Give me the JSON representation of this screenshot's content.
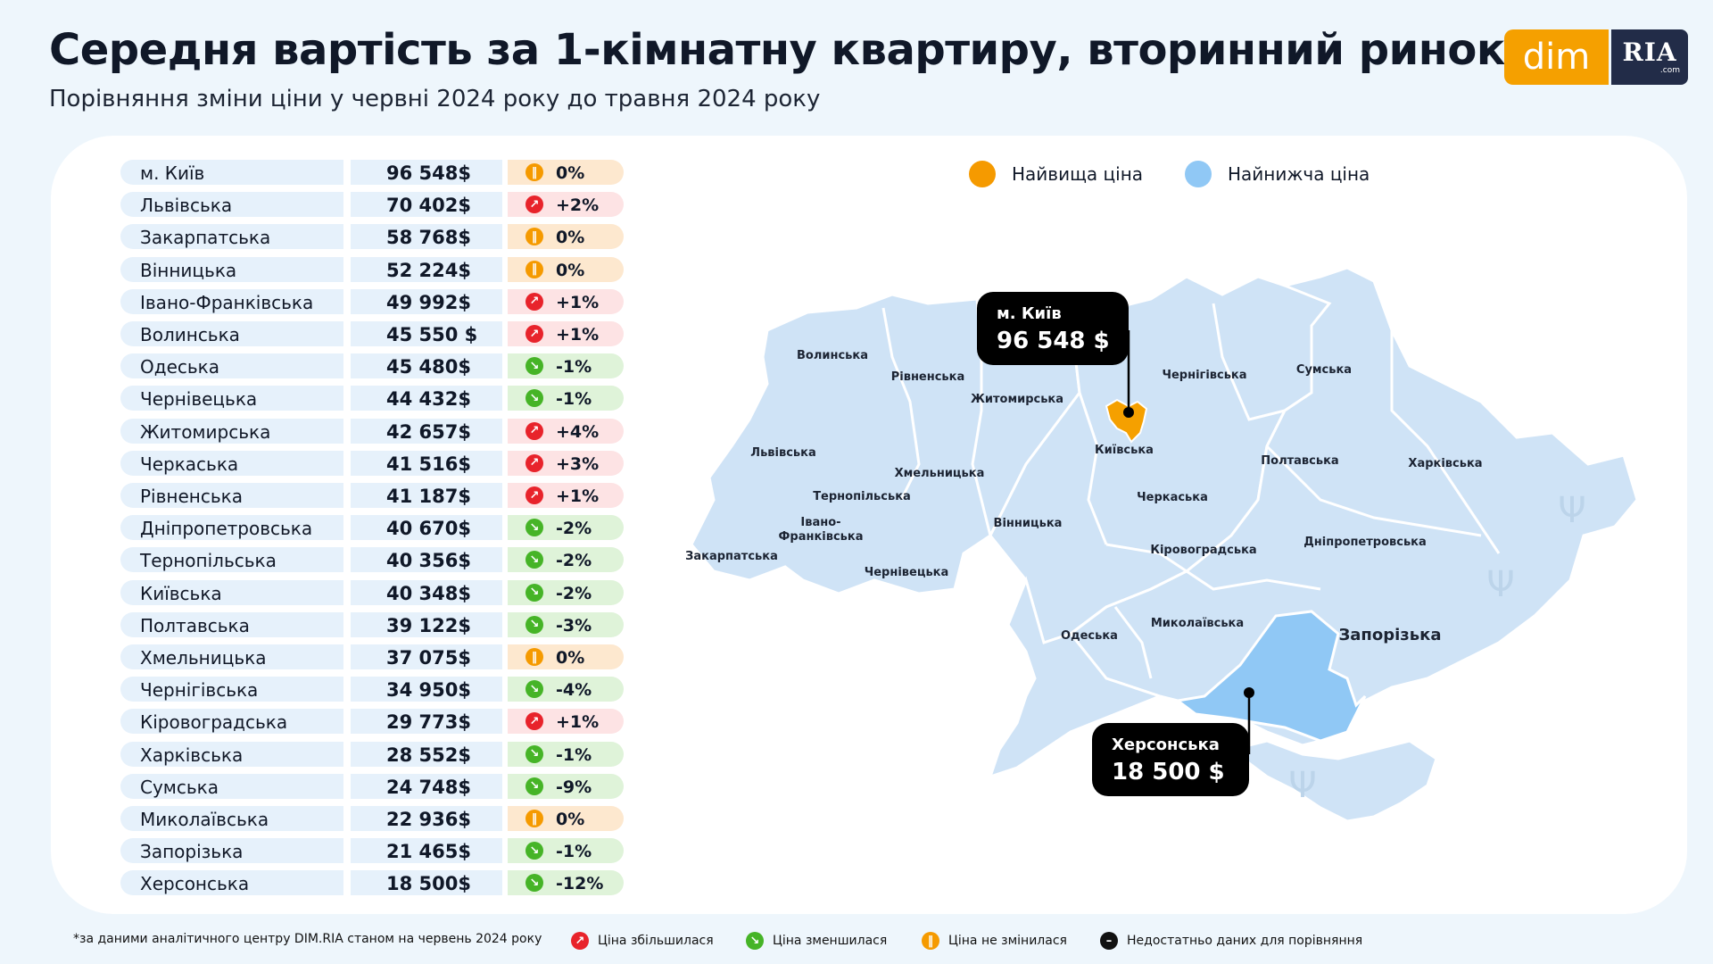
{
  "title": "Середня вартість за 1-кімнатну квартиру, вторинний ринок",
  "subtitle": "Порівняння зміни ціни у червні 2024 року до травня 2024 року",
  "logo": {
    "dim": "dim",
    "ria": "RIA",
    "com": ".com"
  },
  "colors": {
    "highest": "#f5a000",
    "lowest": "#90c8f5",
    "region": "#cfe3f6",
    "up": "#e8232b",
    "down": "#46b427",
    "flat": "#f59a00"
  },
  "legend": {
    "highest": "Найвища ціна",
    "lowest": "Найнижча ціна"
  },
  "chart_data": {
    "type": "table",
    "title": "Середня вартість за 1-кімнатну квартиру, вторинний ринок",
    "columns": [
      "region",
      "price",
      "change"
    ],
    "rows": [
      {
        "region": "м. Київ",
        "price": "96 548$",
        "change": "0%",
        "trend": "flat"
      },
      {
        "region": "Львівська",
        "price": "70 402$",
        "change": "+2%",
        "trend": "up"
      },
      {
        "region": "Закарпатська",
        "price": "58 768$",
        "change": "0%",
        "trend": "flat"
      },
      {
        "region": "Вінницька",
        "price": "52 224$",
        "change": "0%",
        "trend": "flat"
      },
      {
        "region": "Івано-Франківська",
        "price": "49 992$",
        "change": "+1%",
        "trend": "up"
      },
      {
        "region": "Волинська",
        "price": "45 550 $",
        "change": "+1%",
        "trend": "up"
      },
      {
        "region": "Одеська",
        "price": "45 480$",
        "change": "-1%",
        "trend": "down"
      },
      {
        "region": "Чернівецька",
        "price": "44 432$",
        "change": "-1%",
        "trend": "down"
      },
      {
        "region": "Житомирська",
        "price": "42 657$",
        "change": "+4%",
        "trend": "up"
      },
      {
        "region": "Черкаська",
        "price": "41 516$",
        "change": "+3%",
        "trend": "up"
      },
      {
        "region": "Рівненська",
        "price": "41 187$",
        "change": "+1%",
        "trend": "up"
      },
      {
        "region": "Дніпропетровська",
        "price": "40 670$",
        "change": "-2%",
        "trend": "down"
      },
      {
        "region": "Тернопільська",
        "price": "40 356$",
        "change": "-2%",
        "trend": "down"
      },
      {
        "region": "Київська",
        "price": "40 348$",
        "change": "-2%",
        "trend": "down"
      },
      {
        "region": "Полтавська",
        "price": "39 122$",
        "change": "-3%",
        "trend": "down"
      },
      {
        "region": "Хмельницька",
        "price": "37 075$",
        "change": "0%",
        "trend": "flat"
      },
      {
        "region": "Чернігівська",
        "price": "34 950$",
        "change": "-4%",
        "trend": "down"
      },
      {
        "region": "Кіровоградська",
        "price": "29 773$",
        "change": "+1%",
        "trend": "up"
      },
      {
        "region": "Харківська",
        "price": "28 552$",
        "change": "-1%",
        "trend": "down"
      },
      {
        "region": "Сумська",
        "price": "24 748$",
        "change": "-9%",
        "trend": "down"
      },
      {
        "region": "Миколаївська",
        "price": "22 936$",
        "change": "0%",
        "trend": "flat"
      },
      {
        "region": "Запорізька",
        "price": "21 465$",
        "change": "-1%",
        "trend": "down"
      },
      {
        "region": "Херсонська",
        "price": "18 500$",
        "change": "-12%",
        "trend": "down"
      }
    ]
  },
  "map": {
    "labels": [
      "Волинська",
      "Рівненська",
      "Житомирська",
      "Чернігівська",
      "Сумська",
      "Львівська",
      "Київська",
      "Полтавська",
      "Харківська",
      "Хмельницька",
      "Тернопільська",
      "Черкаська",
      "Івано-Франківська",
      "Вінницька",
      "Закарпатська",
      "Кіровоградська",
      "Дніпропетровська",
      "Чернівецька",
      "Одеська",
      "Миколаївська",
      "Запорізька"
    ],
    "callout_max": {
      "name": "м. Київ",
      "value": "96 548 $"
    },
    "callout_min": {
      "name": "Херсонська",
      "value": "18 500 $"
    }
  },
  "footer": {
    "note": "*за даними аналітичного центру DIM.RIA станом на червень 2024 року",
    "up": "Ціна збільшилася",
    "down": "Ціна зменшилася",
    "flat": "Ціна не змінилася",
    "na": "Недостатньо даних для порівняння"
  }
}
